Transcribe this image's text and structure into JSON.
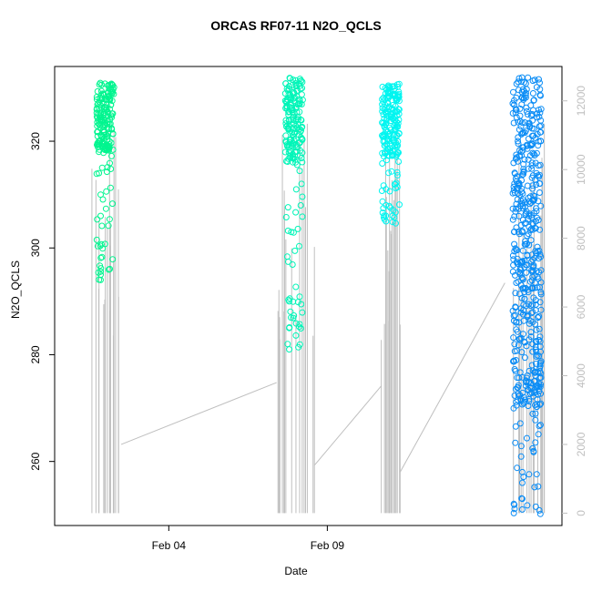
{
  "chart_data": {
    "type": "scatter",
    "title": "ORCAS RF07-11 N2O_QCLS",
    "xlabel": "Date",
    "ylabel": "N2O_QCLS",
    "x_ticks": [
      "Feb 04",
      "Feb 09"
    ],
    "y_ticks": [
      260,
      280,
      300,
      320
    ],
    "y_range": [
      248,
      334
    ],
    "y2_ticks": [
      0,
      2000,
      4000,
      6000,
      8000,
      10000,
      12000
    ],
    "y2_range": [
      -360,
      13000
    ],
    "grid": false,
    "series": [
      {
        "color": "#00f58f",
        "x_center": 0.6,
        "y_min": 294,
        "y_max": 331,
        "dense_min": 318,
        "outliers": [
          306,
          310,
          294,
          295
        ]
      },
      {
        "color": "#00f5b8",
        "x_center": 6.55,
        "y_min": 280,
        "y_max": 332,
        "dense_min": 316,
        "outliers": [
          281,
          285,
          290
        ]
      },
      {
        "color": "#00f5f0",
        "x_center": 9.6,
        "y_min": 304,
        "y_max": 331,
        "dense_min": 317,
        "outliers": [
          305,
          308,
          311
        ]
      },
      {
        "color": "#0a8cf5",
        "x_center": 13.9,
        "y_min": 250,
        "y_max": 332,
        "dense_min": 270,
        "outliers": [
          251,
          253,
          256,
          258
        ]
      }
    ],
    "altitude_trace_color": "#bfbfbf"
  }
}
